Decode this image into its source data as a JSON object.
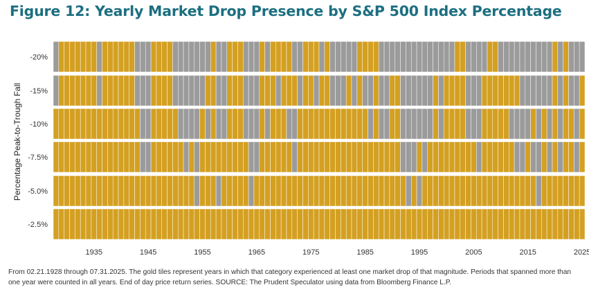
{
  "title": "Figure 12: Yearly Market Drop Presence by S&P 500 Index Percentage",
  "footnote": "From 02.21.1928 through 07.31.2025. The gold tiles represent years in which that category experienced at least one market drop of that magnitude. Periods that spanned more than one year were counted in all years. End of day price return series. SOURCE: The Prudent Speculator using data from Bloomberg Finance L.P.",
  "colors": {
    "present": "#d4a022",
    "absent": "#9b9b9b",
    "separator": "#ffffff",
    "title": "#1c6f80"
  },
  "chart_data": {
    "type": "heatmap",
    "title": "Figure 12: Yearly Market Drop Presence by S&P 500 Index Percentage",
    "ylabel": "Percentage Peak-to-Trough Fall",
    "xlabel": "",
    "x_range": [
      1928,
      2025
    ],
    "xticks": [
      "1935",
      "1945",
      "1955",
      "1965",
      "1975",
      "1985",
      "1995",
      "2005",
      "2015",
      "2025"
    ],
    "xtick_years": [
      1935,
      1945,
      1955,
      1965,
      1975,
      1985,
      1995,
      2005,
      2015,
      2025
    ],
    "rows": [
      {
        "label": "-20%",
        "absent_years": [
          1928,
          1936,
          1943,
          1944,
          1945,
          1950,
          1951,
          1952,
          1953,
          1954,
          1955,
          1956,
          1958,
          1959,
          1963,
          1964,
          1965,
          1967,
          1972,
          1973,
          1977,
          1979,
          1980,
          1981,
          1982,
          1983,
          1988,
          1989,
          1990,
          1991,
          1992,
          1993,
          1994,
          1995,
          1996,
          1997,
          1998,
          1999,
          2000,
          2001,
          2004,
          2005,
          2006,
          2007,
          2010,
          2011,
          2012,
          2013,
          2014,
          2015,
          2016,
          2017,
          2018,
          2019,
          2021,
          2023,
          2024,
          2025
        ]
      },
      {
        "label": "-15%",
        "absent_years": [
          1928,
          1936,
          1943,
          1944,
          1945,
          1950,
          1951,
          1952,
          1953,
          1954,
          1955,
          1958,
          1959,
          1963,
          1964,
          1965,
          1969,
          1973,
          1976,
          1979,
          1980,
          1981,
          1983,
          1985,
          1986,
          1988,
          1989,
          1992,
          1993,
          1994,
          1995,
          1996,
          1997,
          1999,
          2004,
          2005,
          2006,
          2014,
          2015,
          2016,
          2017,
          2018,
          2019,
          2021,
          2023,
          2024
        ]
      },
      {
        "label": "-10%",
        "absent_years": [
          1944,
          1945,
          1951,
          1952,
          1953,
          1954,
          1956,
          1958,
          1959,
          1963,
          1964,
          1965,
          1967,
          1971,
          1972,
          1986,
          1988,
          1989,
          1992,
          1993,
          1994,
          1995,
          1996,
          1997,
          1999,
          2004,
          2005,
          2006,
          2012,
          2013,
          2014,
          2015,
          2017,
          2019,
          2021,
          2024
        ]
      },
      {
        "label": "-7.5%",
        "absent_years": [
          1944,
          1945,
          1952,
          1954,
          1964,
          1965,
          1972,
          1992,
          1993,
          1994,
          1996,
          2006,
          2013,
          2014,
          2016,
          2017,
          2019,
          2021,
          2024
        ]
      },
      {
        "label": "-5.0%",
        "absent_years": [
          1954,
          1958,
          1964,
          1993,
          1995,
          2017
        ]
      },
      {
        "label": "-2.5%",
        "absent_years": []
      }
    ]
  }
}
